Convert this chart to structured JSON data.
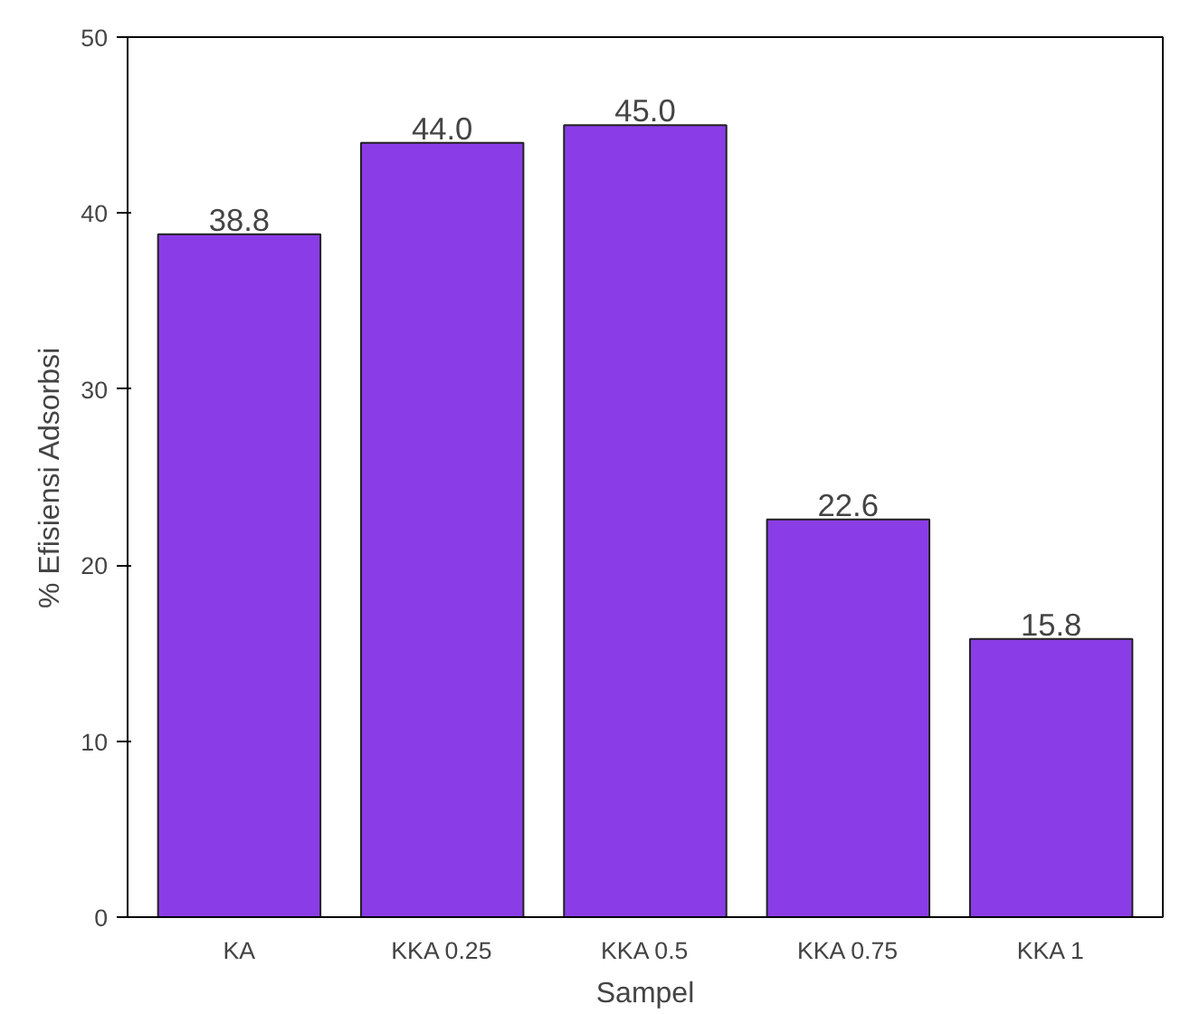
{
  "chart_data": {
    "type": "bar",
    "xlabel": "Sampel",
    "ylabel": "% Efisiensi Adsorbsi",
    "categories": [
      "KA",
      "KKA 0.25",
      "KKA 0.5",
      "KKA 0.75",
      "KKA 1"
    ],
    "values": [
      38.8,
      44.0,
      45.0,
      22.6,
      15.8
    ],
    "color": "#8a3de6",
    "value_labels": [
      "38.8",
      "44.0",
      "45.0",
      "22.6",
      "15.8"
    ],
    "ylim": [
      0,
      50
    ],
    "yticks": [
      0,
      10,
      20,
      30,
      40,
      50
    ],
    "grid": false
  }
}
